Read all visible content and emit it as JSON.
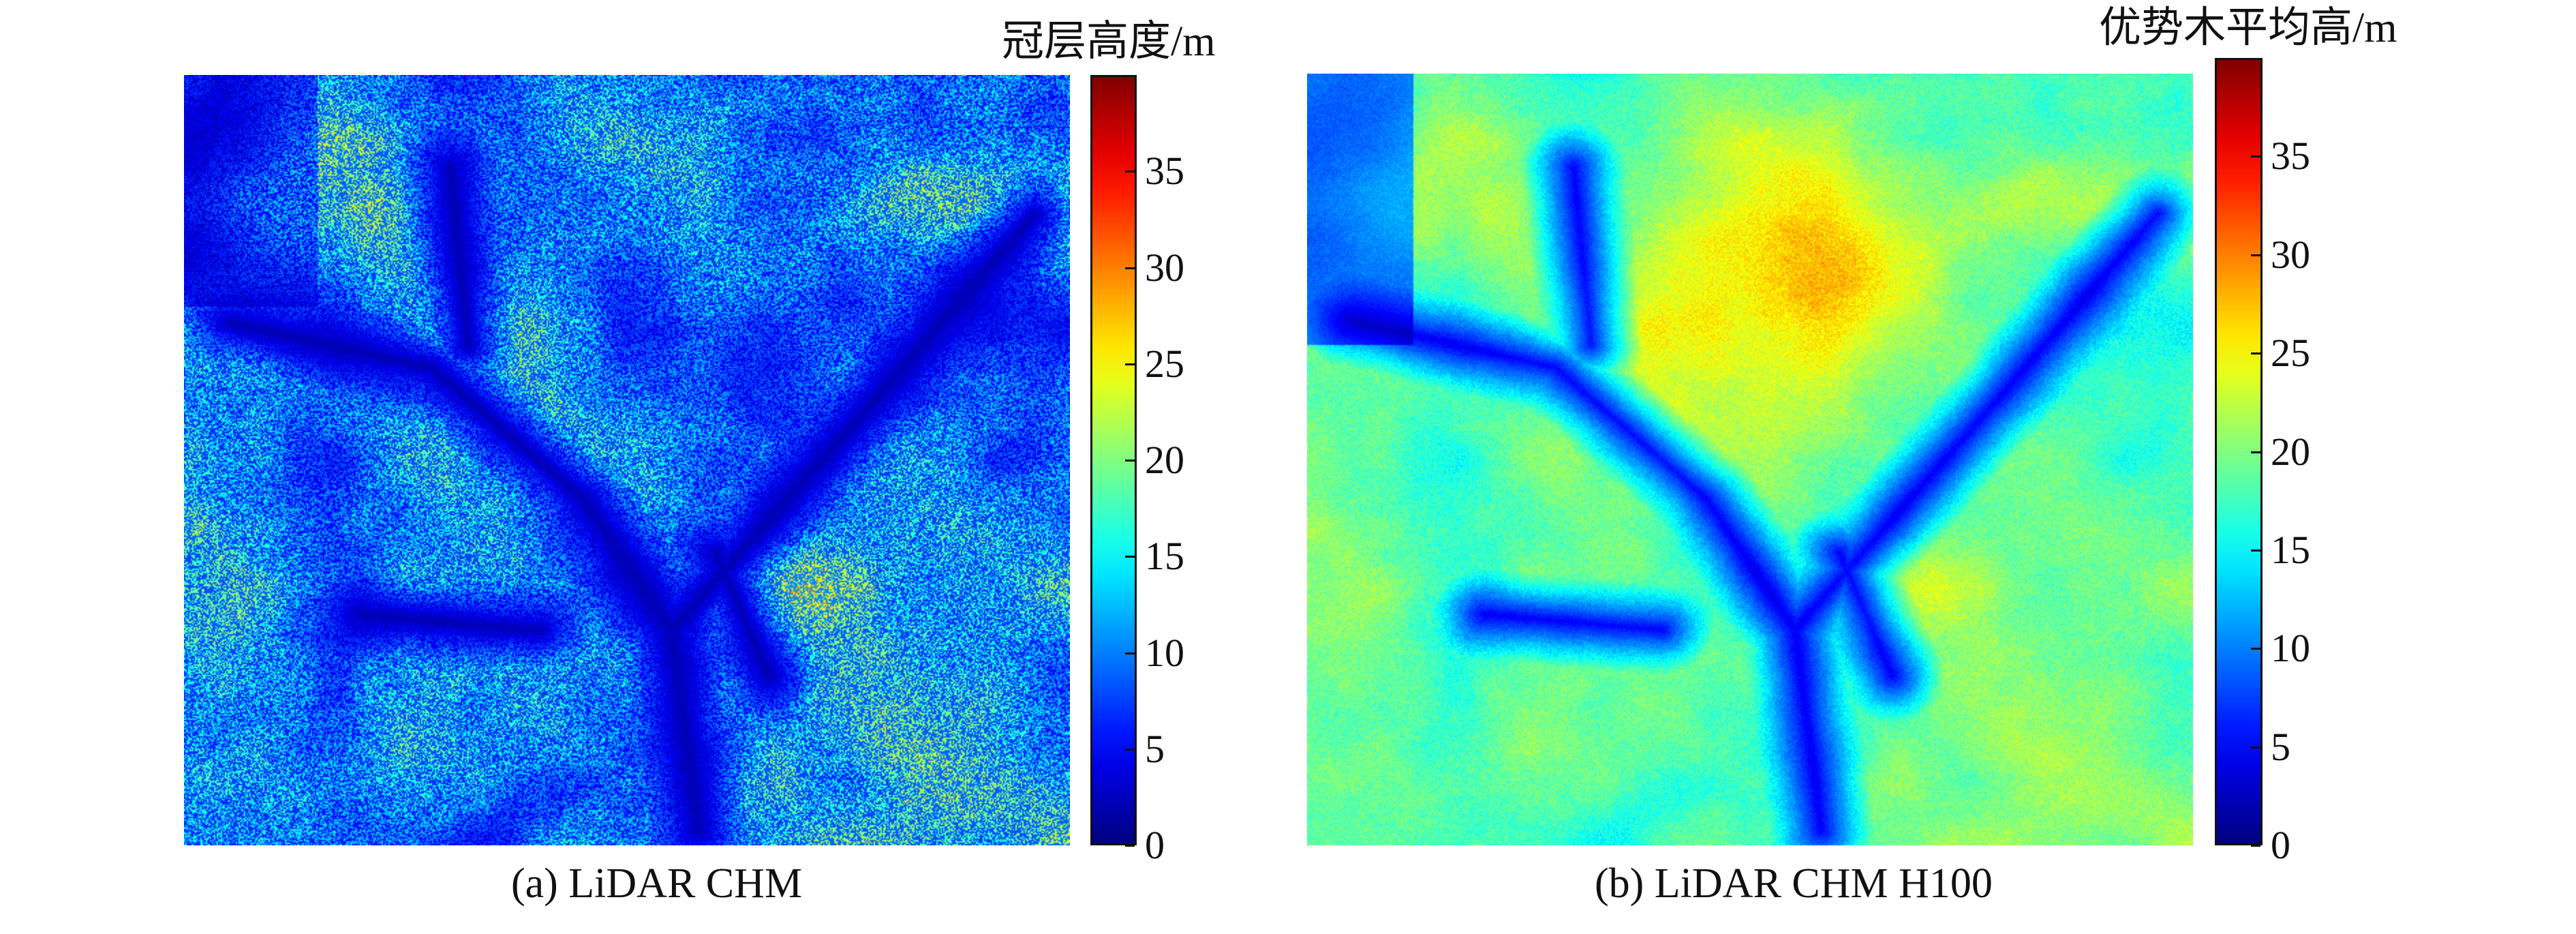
{
  "chart_data": [
    {
      "type": "heatmap",
      "title": "",
      "caption": "(a) LiDAR CHM",
      "colorbar": {
        "label": "冠层高度/m",
        "range": [
          0,
          40
        ],
        "ticks": [
          0,
          5,
          10,
          15,
          20,
          25,
          30,
          35
        ],
        "colormap": "jet"
      },
      "value_distribution": "mostly 0-15 m with scattered 20-25 m pixels; low values along river valleys"
    },
    {
      "type": "heatmap",
      "title": "",
      "caption": "(b) LiDAR CHM H100",
      "colorbar": {
        "label": "优势木平均高/m",
        "range": [
          0,
          40
        ],
        "ticks": [
          0,
          5,
          10,
          15,
          20,
          25,
          30,
          35
        ],
        "colormap": "jet"
      },
      "value_distribution": "mostly 15-25 m, upper-central region 25-35 m, low values along river valleys"
    }
  ]
}
